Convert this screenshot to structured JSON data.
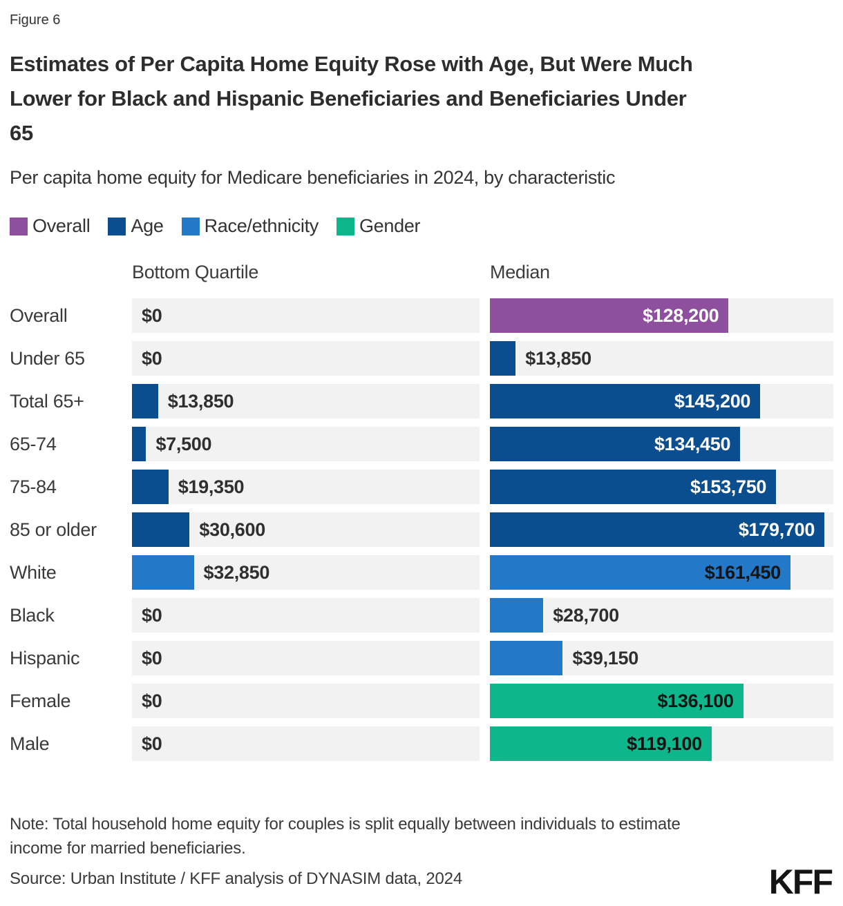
{
  "figure_label": "Figure 6",
  "title": "Estimates of Per Capita Home Equity Rose with Age, But Were Much Lower for Black and Hispanic Beneficiaries and Beneficiaries Under 65",
  "subtitle": "Per capita home equity for Medicare beneficiaries in 2024, by characteristic",
  "legend": [
    {
      "label": "Overall",
      "group": "overall"
    },
    {
      "label": "Age",
      "group": "age"
    },
    {
      "label": "Race/ethnicity",
      "group": "race"
    },
    {
      "label": "Gender",
      "group": "gender"
    }
  ],
  "columns": {
    "bottom_quartile": "Bottom Quartile",
    "median": "Median"
  },
  "scale_max": 184500,
  "colors": {
    "groups": {
      "overall": "#8e4f9f",
      "age": "#0b4e8f",
      "race": "#2478c8",
      "gender": "#0db78b"
    },
    "track": "#f2f2f2",
    "value_outside": "#2f2f2f",
    "value_inside_light": "#ffffff",
    "value_inside_dark": "#141414"
  },
  "dark_text_groups": [
    "race",
    "gender"
  ],
  "rows": [
    {
      "key": "overall",
      "label": "Overall",
      "group": "overall",
      "bq": {
        "value": 0,
        "display": "$0",
        "inside": false
      },
      "median": {
        "value": 128200,
        "display": "$128,200",
        "inside": true
      }
    },
    {
      "key": "under-65",
      "label": "Under 65",
      "group": "age",
      "bq": {
        "value": 0,
        "display": "$0",
        "inside": false
      },
      "median": {
        "value": 13850,
        "display": "$13,850",
        "inside": false
      }
    },
    {
      "key": "total-65-plus",
      "label": "Total 65+",
      "group": "age",
      "bq": {
        "value": 13850,
        "display": "$13,850",
        "inside": false
      },
      "median": {
        "value": 145200,
        "display": "$145,200",
        "inside": true
      }
    },
    {
      "key": "65-74",
      "label": "65-74",
      "group": "age",
      "bq": {
        "value": 7500,
        "display": "$7,500",
        "inside": false
      },
      "median": {
        "value": 134450,
        "display": "$134,450",
        "inside": true
      }
    },
    {
      "key": "75-84",
      "label": "75-84",
      "group": "age",
      "bq": {
        "value": 19350,
        "display": "$19,350",
        "inside": false
      },
      "median": {
        "value": 153750,
        "display": "$153,750",
        "inside": true
      }
    },
    {
      "key": "85-or-older",
      "label": "85 or older",
      "group": "age",
      "bq": {
        "value": 30600,
        "display": "$30,600",
        "inside": false
      },
      "median": {
        "value": 179700,
        "display": "$179,700",
        "inside": true
      }
    },
    {
      "key": "white",
      "label": "White",
      "group": "race",
      "bq": {
        "value": 32850,
        "display": "$32,850",
        "inside": false
      },
      "median": {
        "value": 161450,
        "display": "$161,450",
        "inside": true
      }
    },
    {
      "key": "black",
      "label": "Black",
      "group": "race",
      "bq": {
        "value": 0,
        "display": "$0",
        "inside": false
      },
      "median": {
        "value": 28700,
        "display": "$28,700",
        "inside": false
      }
    },
    {
      "key": "hispanic",
      "label": "Hispanic",
      "group": "race",
      "bq": {
        "value": 0,
        "display": "$0",
        "inside": false
      },
      "median": {
        "value": 39150,
        "display": "$39,150",
        "inside": false
      }
    },
    {
      "key": "female",
      "label": "Female",
      "group": "gender",
      "bq": {
        "value": 0,
        "display": "$0",
        "inside": false
      },
      "median": {
        "value": 136100,
        "display": "$136,100",
        "inside": true
      }
    },
    {
      "key": "male",
      "label": "Male",
      "group": "gender",
      "bq": {
        "value": 0,
        "display": "$0",
        "inside": false
      },
      "median": {
        "value": 119100,
        "display": "$119,100",
        "inside": true
      }
    }
  ],
  "note": "Note: Total household home equity for couples is split equally between individuals to estimate income for married beneficiaries.",
  "source": "Source: Urban Institute / KFF analysis of DYNASIM data, 2024",
  "logo": "KFF",
  "chart_data": {
    "type": "bar",
    "orientation": "horizontal",
    "title": "Estimates of Per Capita Home Equity Rose with Age, But Were Much Lower for Black and Hispanic Beneficiaries and Beneficiaries Under 65",
    "subtitle": "Per capita home equity for Medicare beneficiaries in 2024, by characteristic",
    "categories": [
      "Overall",
      "Under 65",
      "Total 65+",
      "65-74",
      "75-84",
      "85 or older",
      "White",
      "Black",
      "Hispanic",
      "Female",
      "Male"
    ],
    "category_groups": [
      "Overall",
      "Age",
      "Age",
      "Age",
      "Age",
      "Age",
      "Race/ethnicity",
      "Race/ethnicity",
      "Race/ethnicity",
      "Gender",
      "Gender"
    ],
    "series": [
      {
        "name": "Bottom Quartile",
        "values": [
          0,
          0,
          13850,
          7500,
          19350,
          30600,
          32850,
          0,
          0,
          0,
          0
        ]
      },
      {
        "name": "Median",
        "values": [
          128200,
          13850,
          145200,
          134450,
          153750,
          179700,
          161450,
          28700,
          39150,
          136100,
          119100
        ]
      }
    ],
    "xlim": [
      0,
      184500
    ],
    "grid": false,
    "legend_position": "top",
    "legend_entries": [
      "Overall",
      "Age",
      "Race/ethnicity",
      "Gender"
    ]
  }
}
